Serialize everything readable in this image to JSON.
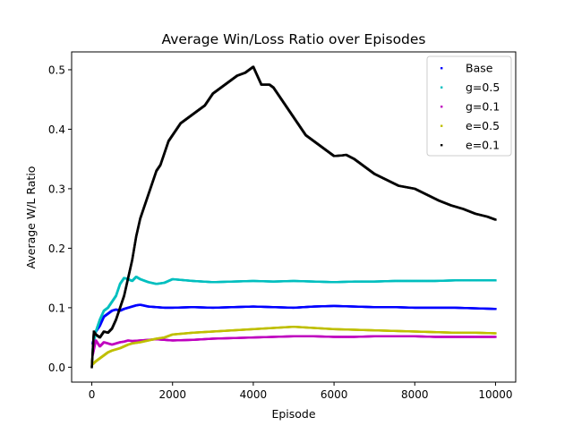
{
  "chart_data": {
    "type": "scatter",
    "title": "Average Win/Loss Ratio over Episodes",
    "xlabel": "Episode",
    "ylabel": "Average W/L Ratio",
    "xlim": [
      -500,
      10500
    ],
    "ylim": [
      -0.025,
      0.53
    ],
    "xticks": [
      0,
      2000,
      4000,
      6000,
      8000,
      10000
    ],
    "xtick_labels": [
      "0",
      "2000",
      "4000",
      "6000",
      "8000",
      "10000"
    ],
    "yticks": [
      0.0,
      0.1,
      0.2,
      0.3,
      0.4,
      0.5
    ],
    "ytick_labels": [
      "0.0",
      "0.1",
      "0.2",
      "0.3",
      "0.4",
      "0.5"
    ],
    "grid": false,
    "legend_position": "top-right",
    "series": [
      {
        "name": "Base",
        "color": "#0000ff",
        "x": [
          20,
          100,
          200,
          300,
          400,
          500,
          600,
          700,
          800,
          900,
          1000,
          1100,
          1200,
          1400,
          1600,
          1800,
          2000,
          2500,
          3000,
          3500,
          4000,
          4500,
          5000,
          5500,
          6000,
          6500,
          7000,
          7500,
          8000,
          8500,
          9000,
          9500,
          10000
        ],
        "values": [
          0.04,
          0.06,
          0.07,
          0.085,
          0.09,
          0.095,
          0.097,
          0.095,
          0.098,
          0.1,
          0.102,
          0.104,
          0.105,
          0.102,
          0.101,
          0.1,
          0.1,
          0.101,
          0.1,
          0.101,
          0.102,
          0.101,
          0.1,
          0.102,
          0.103,
          0.102,
          0.101,
          0.101,
          0.1,
          0.1,
          0.1,
          0.099,
          0.098
        ]
      },
      {
        "name": "g=0.5",
        "color": "#00bfbf",
        "x": [
          20,
          100,
          200,
          300,
          400,
          500,
          600,
          700,
          800,
          900,
          1000,
          1100,
          1200,
          1400,
          1600,
          1800,
          2000,
          2500,
          3000,
          3500,
          4000,
          4500,
          5000,
          5500,
          6000,
          6500,
          7000,
          7500,
          8000,
          8500,
          9000,
          9500,
          10000
        ],
        "values": [
          0.03,
          0.06,
          0.08,
          0.095,
          0.1,
          0.11,
          0.12,
          0.14,
          0.15,
          0.148,
          0.145,
          0.152,
          0.148,
          0.143,
          0.14,
          0.142,
          0.148,
          0.145,
          0.143,
          0.144,
          0.145,
          0.144,
          0.145,
          0.144,
          0.143,
          0.144,
          0.144,
          0.145,
          0.145,
          0.145,
          0.146,
          0.146,
          0.146
        ]
      },
      {
        "name": "g=0.1",
        "color": "#bf00bf",
        "x": [
          20,
          100,
          200,
          300,
          400,
          500,
          600,
          700,
          800,
          900,
          1000,
          1200,
          1400,
          1600,
          1800,
          2000,
          2500,
          3000,
          3500,
          4000,
          4500,
          5000,
          5500,
          6000,
          6500,
          7000,
          7500,
          8000,
          8500,
          9000,
          9500,
          10000
        ],
        "values": [
          0.02,
          0.045,
          0.035,
          0.042,
          0.04,
          0.038,
          0.04,
          0.042,
          0.043,
          0.045,
          0.044,
          0.045,
          0.046,
          0.047,
          0.046,
          0.045,
          0.046,
          0.048,
          0.049,
          0.05,
          0.051,
          0.052,
          0.052,
          0.051,
          0.051,
          0.052,
          0.052,
          0.052,
          0.051,
          0.051,
          0.051,
          0.051
        ]
      },
      {
        "name": "e=0.5",
        "color": "#bfbf00",
        "x": [
          20,
          100,
          200,
          300,
          400,
          500,
          600,
          700,
          800,
          900,
          1000,
          1200,
          1400,
          1600,
          1800,
          2000,
          2500,
          3000,
          3500,
          4000,
          4500,
          5000,
          5500,
          6000,
          6500,
          7000,
          7500,
          8000,
          8500,
          9000,
          9500,
          10000
        ],
        "values": [
          0.005,
          0.01,
          0.015,
          0.02,
          0.025,
          0.028,
          0.03,
          0.032,
          0.035,
          0.038,
          0.04,
          0.042,
          0.045,
          0.048,
          0.05,
          0.055,
          0.058,
          0.06,
          0.062,
          0.064,
          0.066,
          0.068,
          0.066,
          0.064,
          0.063,
          0.062,
          0.061,
          0.06,
          0.059,
          0.058,
          0.058,
          0.057
        ]
      },
      {
        "name": "e=0.1",
        "color": "#000000",
        "x": [
          0,
          50,
          100,
          200,
          300,
          400,
          500,
          600,
          700,
          800,
          900,
          1000,
          1100,
          1200,
          1300,
          1400,
          1500,
          1600,
          1700,
          1800,
          1900,
          2000,
          2200,
          2400,
          2600,
          2800,
          3000,
          3200,
          3400,
          3600,
          3800,
          4000,
          4100,
          4200,
          4400,
          4500,
          4700,
          4900,
          5100,
          5300,
          5500,
          5700,
          5900,
          6000,
          6200,
          6300,
          6500,
          6700,
          7000,
          7300,
          7600,
          8000,
          8300,
          8600,
          8900,
          9200,
          9500,
          9800,
          10000
        ],
        "values": [
          0.0,
          0.06,
          0.055,
          0.05,
          0.06,
          0.058,
          0.065,
          0.08,
          0.1,
          0.12,
          0.15,
          0.18,
          0.22,
          0.25,
          0.27,
          0.29,
          0.31,
          0.33,
          0.34,
          0.36,
          0.38,
          0.39,
          0.41,
          0.42,
          0.43,
          0.44,
          0.46,
          0.47,
          0.48,
          0.49,
          0.495,
          0.505,
          0.49,
          0.475,
          0.475,
          0.47,
          0.45,
          0.43,
          0.41,
          0.39,
          0.38,
          0.37,
          0.36,
          0.355,
          0.356,
          0.357,
          0.35,
          0.34,
          0.325,
          0.315,
          0.305,
          0.3,
          0.29,
          0.28,
          0.272,
          0.266,
          0.258,
          0.253,
          0.248
        ]
      }
    ]
  }
}
